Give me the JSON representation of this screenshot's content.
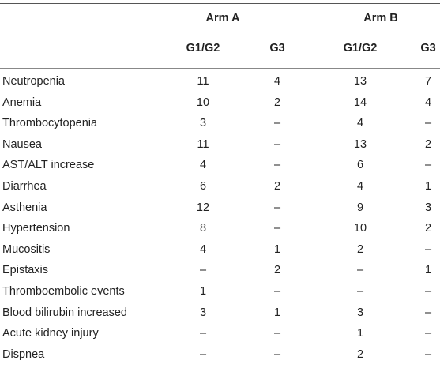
{
  "header": {
    "group_a": "Arm A",
    "group_b": "Arm B",
    "sub_a1": "G1/G2",
    "sub_a2": "G3",
    "sub_b1": "G1/G2",
    "sub_b2": "G3"
  },
  "rows": [
    {
      "label": "Neutropenia",
      "a1": "11",
      "a2": "4",
      "b1": "13",
      "b2": "7"
    },
    {
      "label": "Anemia",
      "a1": "10",
      "a2": "2",
      "b1": "14",
      "b2": "4"
    },
    {
      "label": "Thrombocytopenia",
      "a1": "3",
      "a2": "–",
      "b1": "4",
      "b2": "–"
    },
    {
      "label": "Nausea",
      "a1": "11",
      "a2": "–",
      "b1": "13",
      "b2": "2"
    },
    {
      "label": "AST/ALT increase",
      "a1": "4",
      "a2": "–",
      "b1": "6",
      "b2": "–"
    },
    {
      "label": "Diarrhea",
      "a1": "6",
      "a2": "2",
      "b1": "4",
      "b2": "1"
    },
    {
      "label": "Asthenia",
      "a1": "12",
      "a2": "–",
      "b1": "9",
      "b2": "3"
    },
    {
      "label": "Hypertension",
      "a1": "8",
      "a2": "–",
      "b1": "10",
      "b2": "2"
    },
    {
      "label": "Mucositis",
      "a1": "4",
      "a2": "1",
      "b1": "2",
      "b2": "–"
    },
    {
      "label": "Epistaxis",
      "a1": "–",
      "a2": "2",
      "b1": "–",
      "b2": "1"
    },
    {
      "label": "Thromboembolic events",
      "a1": "1",
      "a2": "–",
      "b1": "–",
      "b2": "–"
    },
    {
      "label": "Blood bilirubin increased",
      "a1": "3",
      "a2": "1",
      "b1": "3",
      "b2": "–"
    },
    {
      "label": "Acute kidney injury",
      "a1": "–",
      "a2": "–",
      "b1": "1",
      "b2": "–"
    },
    {
      "label": "Dispnea",
      "a1": "–",
      "a2": "–",
      "b1": "2",
      "b2": "–"
    }
  ]
}
